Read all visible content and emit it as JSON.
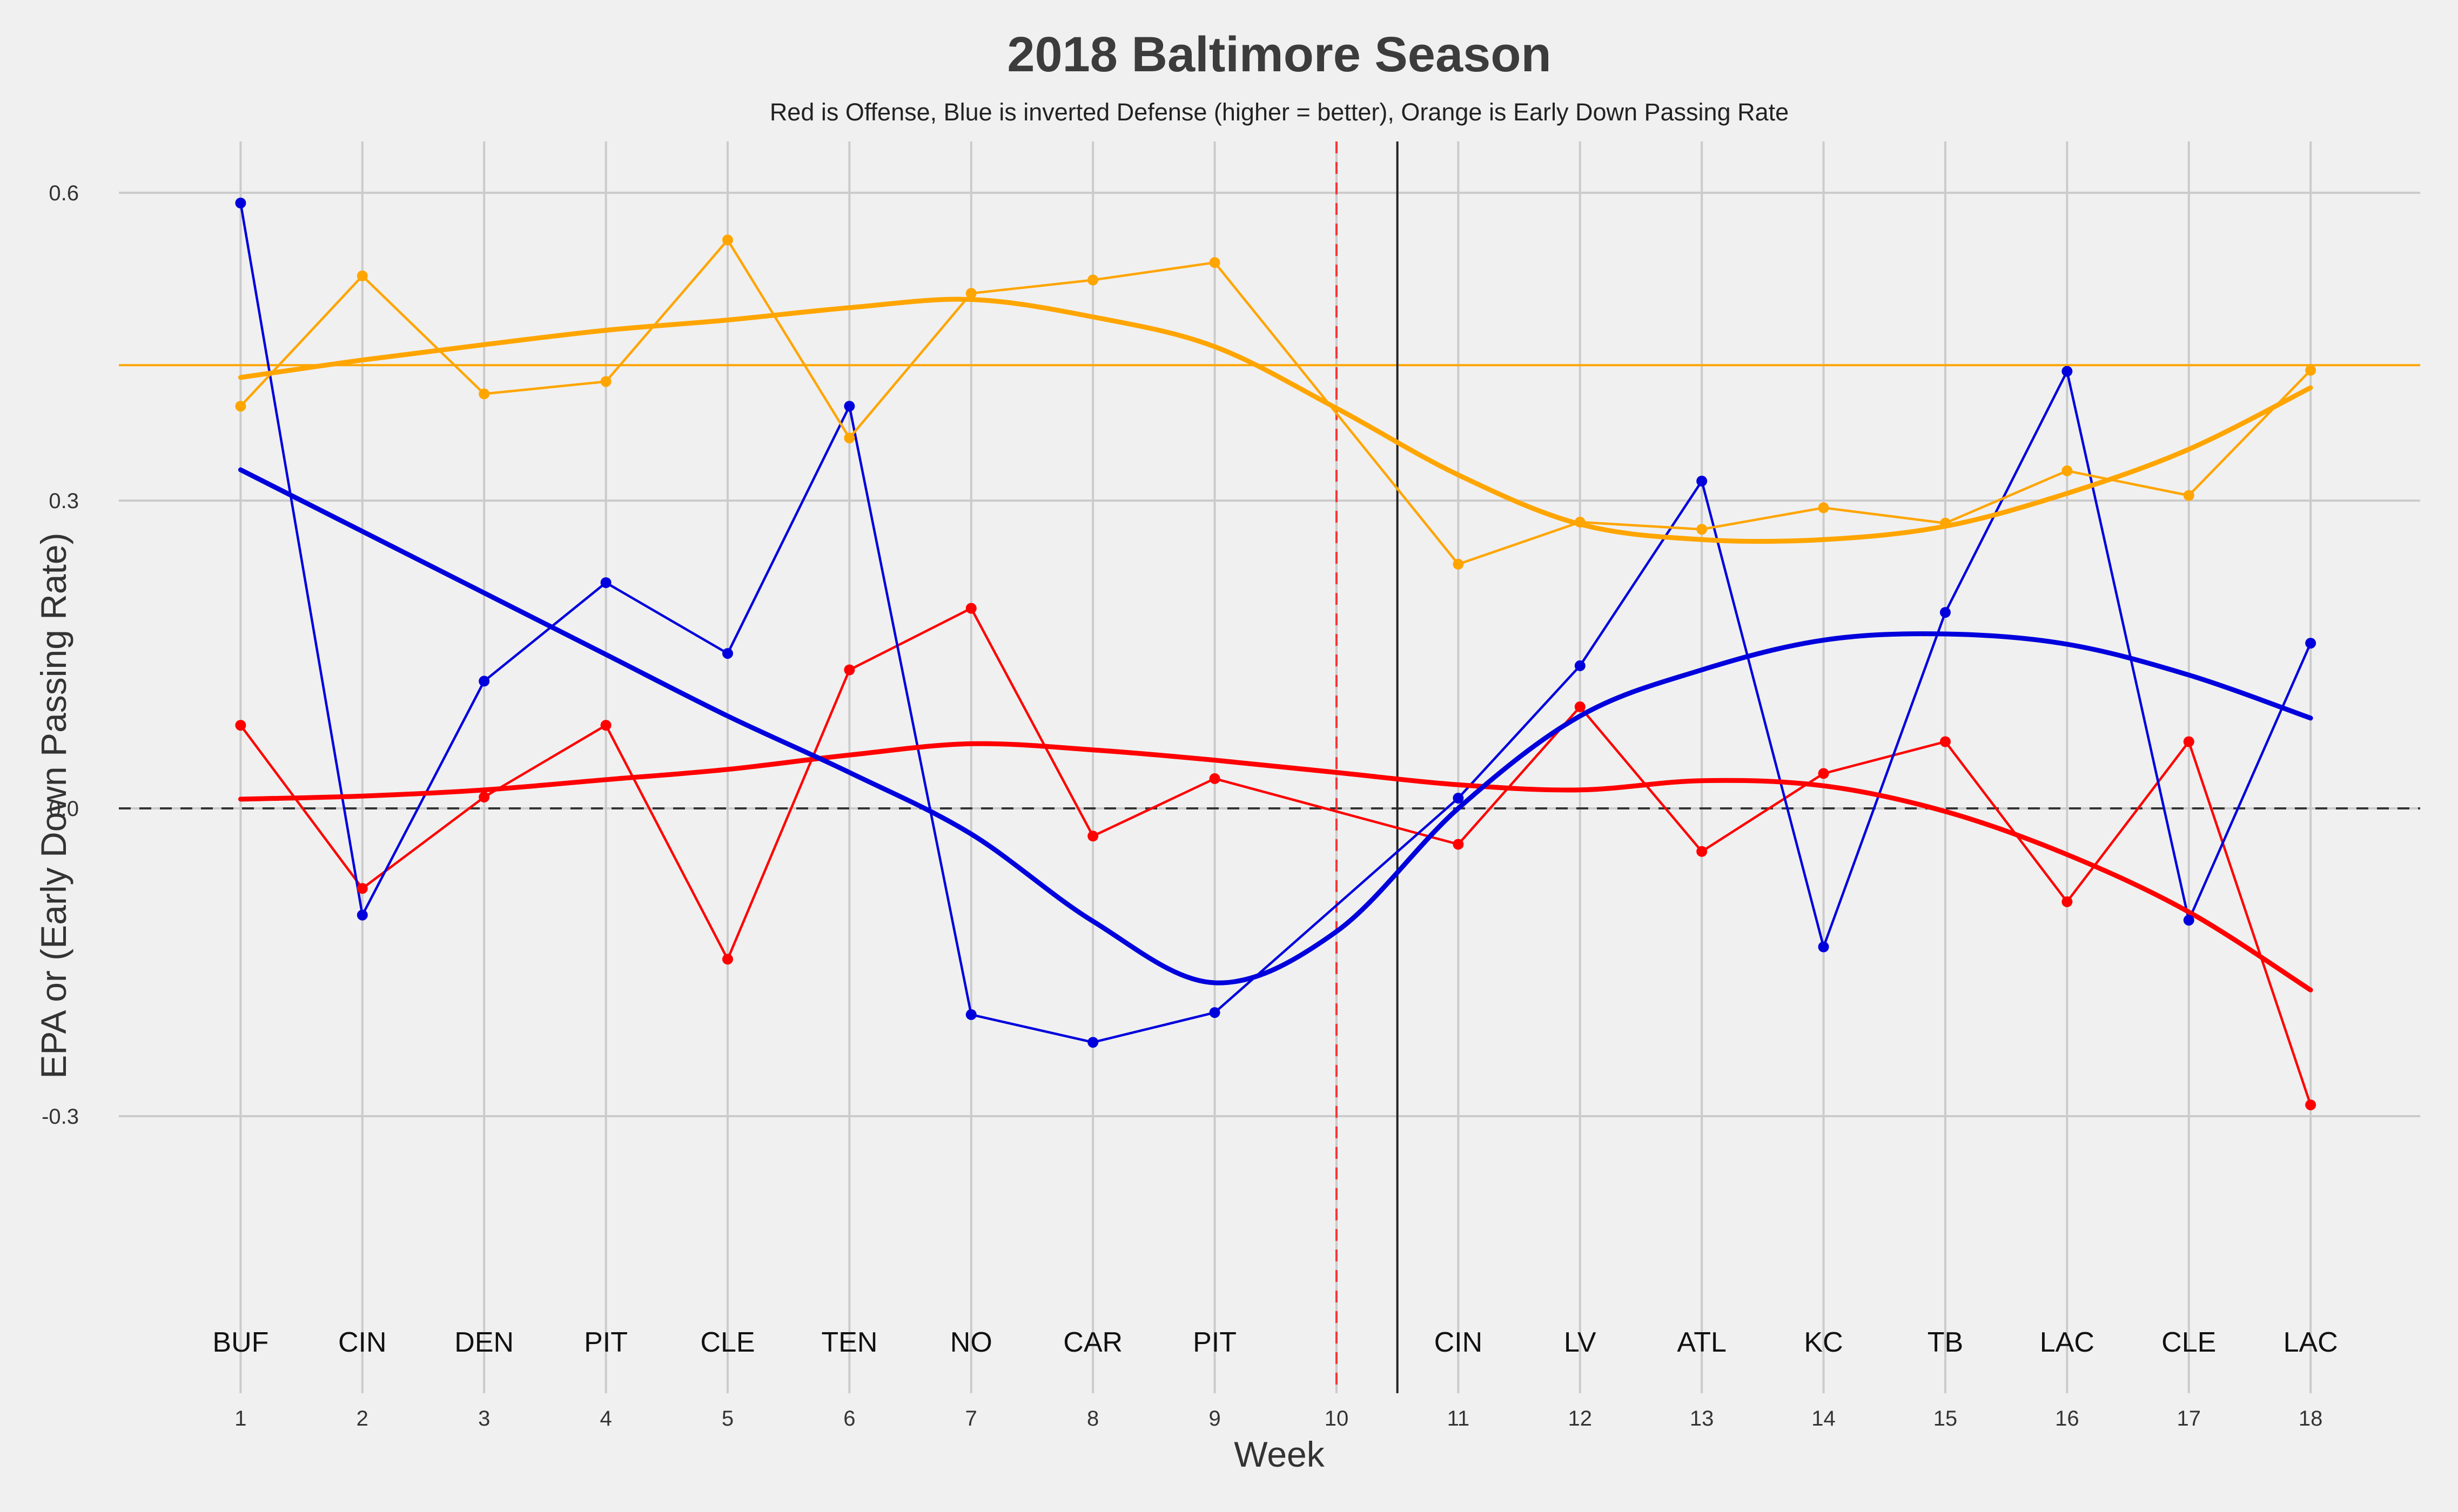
{
  "chart_data": {
    "type": "line",
    "title": "2018 Baltimore Season",
    "subtitle": "Red is Offense, Blue is inverted Defense (higher = better), Orange is Early Down Passing Rate",
    "xlabel": "Week",
    "ylabel": "EPA or (Early Down Passing Rate)",
    "xlim": [
      0.0,
      18.9
    ],
    "ylim": [
      -0.57,
      0.65
    ],
    "x_ticks": [
      1,
      2,
      3,
      4,
      5,
      6,
      7,
      8,
      9,
      10,
      11,
      12,
      13,
      14,
      15,
      16,
      17,
      18
    ],
    "x_tick_labels": [
      "1",
      "2",
      "3",
      "4",
      "5",
      "6",
      "7",
      "8",
      "9",
      "10",
      "11",
      "12",
      "13",
      "14",
      "15",
      "16",
      "17",
      "18"
    ],
    "y_ticks": [
      -0.3,
      0.0,
      0.3,
      0.6
    ],
    "y_tick_labels": [
      "-0.3",
      "0.0",
      "0.3",
      "0.6"
    ],
    "grid": true,
    "opponent_label_y": -0.52,
    "opponents": [
      {
        "week": 1,
        "label": "BUF"
      },
      {
        "week": 2,
        "label": "CIN"
      },
      {
        "week": 3,
        "label": "DEN"
      },
      {
        "week": 4,
        "label": "PIT"
      },
      {
        "week": 5,
        "label": "CLE"
      },
      {
        "week": 6,
        "label": "TEN"
      },
      {
        "week": 7,
        "label": "NO"
      },
      {
        "week": 8,
        "label": "CAR"
      },
      {
        "week": 9,
        "label": "PIT"
      },
      {
        "week": 11,
        "label": "CIN"
      },
      {
        "week": 12,
        "label": "LV"
      },
      {
        "week": 13,
        "label": "ATL"
      },
      {
        "week": 14,
        "label": "KC"
      },
      {
        "week": 15,
        "label": "TB"
      },
      {
        "week": 16,
        "label": "LAC"
      },
      {
        "week": 17,
        "label": "CLE"
      },
      {
        "week": 18,
        "label": "LAC"
      }
    ],
    "series": [
      {
        "key": "offense",
        "color": "#ff0000",
        "x": [
          1,
          2,
          3,
          4,
          5,
          6,
          7,
          8,
          9,
          11,
          12,
          13,
          14,
          15,
          16,
          17,
          18
        ],
        "y": [
          0.081,
          -0.078,
          0.011,
          0.081,
          -0.147,
          0.135,
          0.195,
          -0.027,
          0.029,
          -0.035,
          0.099,
          -0.042,
          0.034,
          0.065,
          -0.091,
          0.065,
          -0.289
        ]
      },
      {
        "key": "defense",
        "color": "#0000dd",
        "x": [
          1,
          2,
          3,
          4,
          5,
          6,
          7,
          8,
          9,
          11,
          12,
          13,
          14,
          15,
          16,
          17,
          18
        ],
        "y": [
          0.59,
          -0.104,
          0.124,
          0.22,
          0.151,
          0.392,
          -0.201,
          -0.228,
          -0.199,
          0.01,
          0.139,
          0.319,
          -0.135,
          0.191,
          0.426,
          -0.109,
          0.161
        ]
      },
      {
        "key": "early_down_pass_rate",
        "color": "#ffa500",
        "x": [
          1,
          2,
          3,
          4,
          5,
          6,
          7,
          8,
          9,
          11,
          12,
          13,
          14,
          15,
          16,
          17,
          18
        ],
        "y": [
          0.392,
          0.519,
          0.404,
          0.416,
          0.554,
          0.361,
          0.502,
          0.515,
          0.532,
          0.238,
          0.279,
          0.272,
          0.293,
          0.278,
          0.329,
          0.305,
          0.427
        ]
      }
    ],
    "smooth_lines": [
      {
        "key": "offense_smooth",
        "color": "#ff0000",
        "x": [
          1,
          2,
          3,
          4,
          5,
          6,
          7,
          8,
          9,
          10,
          11,
          12,
          13,
          14,
          15,
          16,
          17,
          18
        ],
        "y": [
          0.009,
          0.012,
          0.018,
          0.028,
          0.038,
          0.052,
          0.063,
          0.057,
          0.047,
          0.035,
          0.023,
          0.018,
          0.027,
          0.022,
          -0.003,
          -0.045,
          -0.101,
          -0.177
        ]
      },
      {
        "key": "defense_smooth",
        "color": "#0000dd",
        "x": [
          1,
          2,
          3,
          4,
          5,
          6,
          7,
          8,
          9,
          10,
          11,
          12,
          13,
          14,
          15,
          16,
          17,
          18
        ],
        "y": [
          0.33,
          0.27,
          0.21,
          0.15,
          0.09,
          0.035,
          -0.025,
          -0.11,
          -0.17,
          -0.12,
          0.0,
          0.09,
          0.135,
          0.164,
          0.17,
          0.16,
          0.13,
          0.088
        ]
      },
      {
        "key": "early_down_pass_rate_smooth",
        "color": "#ffa500",
        "x": [
          1,
          2,
          3,
          4,
          5,
          6,
          7,
          8,
          9,
          10,
          11,
          12,
          13,
          14,
          15,
          16,
          17,
          18
        ],
        "y": [
          0.42,
          0.437,
          0.452,
          0.466,
          0.476,
          0.488,
          0.496,
          0.479,
          0.45,
          0.39,
          0.325,
          0.277,
          0.262,
          0.262,
          0.275,
          0.307,
          0.35,
          0.41
        ]
      }
    ],
    "reference_lines": [
      {
        "key": "pass-rate-average-line",
        "orientation": "horizontal",
        "value": 0.432,
        "color": "#ffa500",
        "style": "solid"
      },
      {
        "key": "zero-line",
        "orientation": "horizontal",
        "value": 0.0,
        "color": "#333333",
        "style": "dashed"
      },
      {
        "key": "week-10-line",
        "orientation": "vertical",
        "value": 10,
        "color": "#ff3333",
        "style": "dashed"
      },
      {
        "key": "bye-divider-line",
        "orientation": "vertical",
        "value": 10.5,
        "color": "#222222",
        "style": "solid"
      }
    ]
  }
}
